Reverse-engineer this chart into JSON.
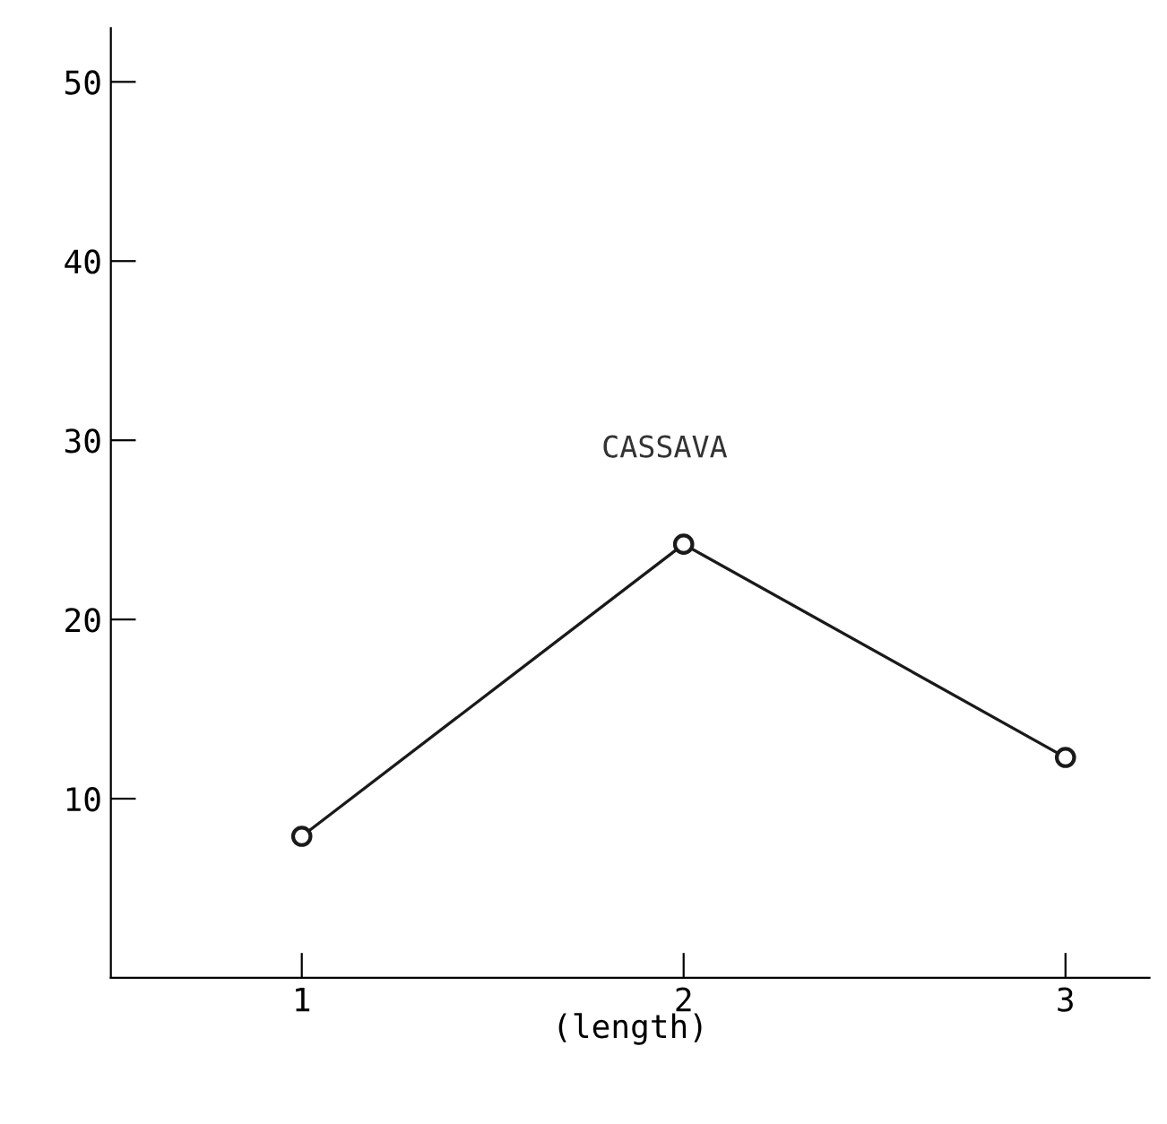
{
  "chart_data": {
    "type": "line",
    "xlabel": "(length)",
    "categories": [
      "1",
      "2",
      "3"
    ],
    "series": [
      {
        "name": "CASSAVA",
        "color": "#1a1a1a",
        "values": [
          7.9,
          24.2,
          12.3
        ]
      }
    ],
    "ylim": [
      0,
      53
    ],
    "yticks": [
      10,
      20,
      30,
      40,
      50
    ],
    "marker": "circle",
    "line_style": "solid",
    "grid": false,
    "legend": false
  }
}
